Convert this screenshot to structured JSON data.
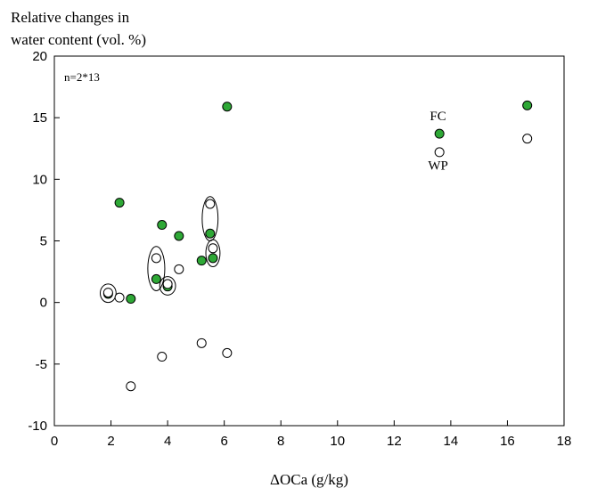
{
  "chart_data": {
    "type": "scatter",
    "ylabel_lines": [
      "Relative changes in",
      "water content (vol. %)"
    ],
    "xlabel": "ΔOCa (g/kg)",
    "xlim": [
      0,
      18
    ],
    "ylim": [
      -10,
      20
    ],
    "xticks": [
      0,
      2,
      4,
      6,
      8,
      10,
      12,
      14,
      16,
      18
    ],
    "yticks": [
      -10,
      -5,
      0,
      5,
      10,
      15,
      20
    ],
    "n_label": "n=2*13",
    "annotations": [
      {
        "text": "FC",
        "x": 13.55,
        "y": 14.8
      },
      {
        "text": "WP",
        "x": 13.55,
        "y": 10.8
      }
    ],
    "series": [
      {
        "name": "FC",
        "marker": "filled",
        "color": "#2ea836",
        "points": [
          {
            "x": 2.3,
            "y": 8.1
          },
          {
            "x": 6.1,
            "y": 15.9
          },
          {
            "x": 3.8,
            "y": 6.3
          },
          {
            "x": 4.4,
            "y": 5.4
          },
          {
            "x": 5.5,
            "y": 5.6
          },
          {
            "x": 5.2,
            "y": 3.4
          },
          {
            "x": 5.6,
            "y": 3.6
          },
          {
            "x": 3.6,
            "y": 1.9
          },
          {
            "x": 4.0,
            "y": 1.3
          },
          {
            "x": 1.9,
            "y": 0.7
          },
          {
            "x": 2.7,
            "y": 0.3
          },
          {
            "x": 13.6,
            "y": 13.7
          },
          {
            "x": 16.7,
            "y": 16.0
          }
        ]
      },
      {
        "name": "WP",
        "marker": "open",
        "color": "#ffffff",
        "points": [
          {
            "x": 5.5,
            "y": 8.0
          },
          {
            "x": 3.6,
            "y": 3.6
          },
          {
            "x": 5.6,
            "y": 4.4
          },
          {
            "x": 4.4,
            "y": 2.7
          },
          {
            "x": 4.0,
            "y": 1.5
          },
          {
            "x": 1.9,
            "y": 0.8
          },
          {
            "x": 2.3,
            "y": 0.4
          },
          {
            "x": 5.2,
            "y": -3.3
          },
          {
            "x": 3.8,
            "y": -4.4
          },
          {
            "x": 6.1,
            "y": -4.1
          },
          {
            "x": 2.7,
            "y": -6.8
          },
          {
            "x": 13.6,
            "y": 12.2
          },
          {
            "x": 16.7,
            "y": 13.3
          }
        ]
      }
    ],
    "ellipses": [
      {
        "cx": 1.9,
        "cy": 0.75,
        "rx": 0.28,
        "ry": 0.75
      },
      {
        "cx": 3.6,
        "cy": 2.75,
        "rx": 0.3,
        "ry": 1.8
      },
      {
        "cx": 4.0,
        "cy": 1.35,
        "rx": 0.28,
        "ry": 0.75
      },
      {
        "cx": 5.5,
        "cy": 6.8,
        "rx": 0.28,
        "ry": 1.8
      },
      {
        "cx": 5.6,
        "cy": 4.0,
        "rx": 0.25,
        "ry": 1.1
      }
    ]
  }
}
